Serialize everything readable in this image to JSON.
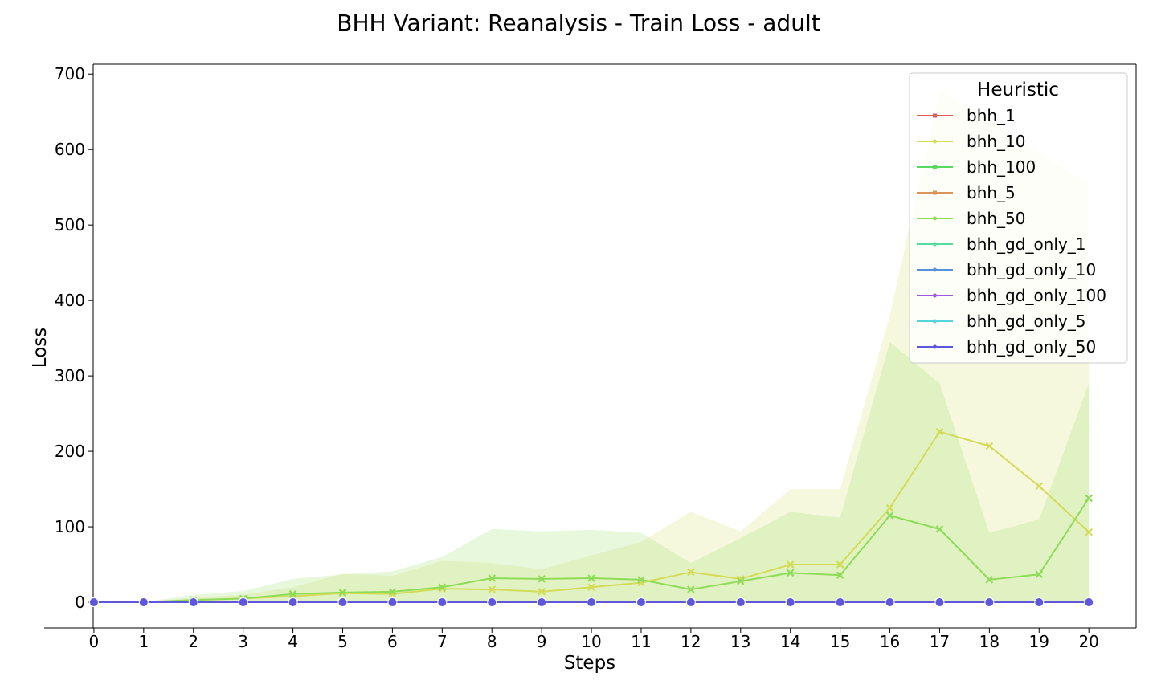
{
  "chart_data": {
    "type": "line",
    "title": "BHH Variant: Reanalysis - Train Loss - adult",
    "xlabel": "Steps",
    "ylabel": "Loss",
    "x": [
      0,
      1,
      2,
      3,
      4,
      5,
      6,
      7,
      8,
      9,
      10,
      11,
      12,
      13,
      14,
      15,
      16,
      17,
      18,
      19,
      20
    ],
    "xlim": [
      -1,
      20.95
    ],
    "ylim": [
      -34,
      713
    ],
    "x_ticks": [
      "0",
      "1",
      "2",
      "3",
      "4",
      "5",
      "6",
      "7",
      "8",
      "9",
      "10",
      "11",
      "12",
      "13",
      "14",
      "15",
      "16",
      "17",
      "18",
      "19",
      "20"
    ],
    "y_ticks": [
      0,
      100,
      200,
      300,
      400,
      500,
      600,
      700
    ],
    "y_tick_labels": [
      "0",
      "100",
      "200",
      "300",
      "400",
      "500",
      "600",
      "700"
    ],
    "grid": false,
    "legend": {
      "title": "Heuristic",
      "placement": "top-right"
    },
    "series": [
      {
        "name": "bhh_1",
        "color": "#db5f57",
        "marker": "square",
        "values": [
          0,
          0,
          0,
          0,
          0,
          0,
          0,
          0,
          0,
          0,
          0,
          0,
          0,
          0,
          0,
          0,
          0,
          0,
          0,
          0,
          0
        ]
      },
      {
        "name": "bhh_10",
        "color": "#d3db57",
        "marker": "x",
        "values": [
          0,
          0,
          3,
          5,
          8,
          12,
          11,
          18,
          17,
          14,
          20,
          26,
          40,
          31,
          50,
          50,
          125,
          226,
          207,
          154,
          93
        ],
        "band_lower": [
          0,
          0,
          0,
          0,
          0,
          0,
          0,
          0,
          0,
          0,
          0,
          0,
          0,
          0,
          0,
          0,
          0,
          0,
          0,
          0,
          0
        ],
        "band_upper": [
          0,
          0,
          6,
          10,
          20,
          38,
          35,
          55,
          52,
          44,
          62,
          80,
          120,
          94,
          150,
          150,
          380,
          680,
          640,
          595,
          555
        ]
      },
      {
        "name": "bhh_100",
        "color": "#57db5f",
        "marker": "square",
        "values": [
          0,
          0,
          0,
          0,
          0,
          0,
          0,
          0,
          0,
          0,
          0,
          0,
          0,
          0,
          0,
          0,
          0,
          0,
          0,
          0,
          0
        ]
      },
      {
        "name": "bhh_5",
        "color": "#db9457",
        "marker": "square",
        "values": [
          0,
          0,
          0,
          0,
          0,
          0,
          0,
          0,
          0,
          0,
          0,
          0,
          0,
          0,
          0,
          0,
          0,
          0,
          0,
          0,
          0
        ]
      },
      {
        "name": "bhh_50",
        "color": "#8edb57",
        "marker": "x",
        "values": [
          0,
          0,
          3,
          5,
          11,
          13,
          14,
          20,
          32,
          31,
          32,
          30,
          17,
          28,
          39,
          36,
          115,
          97,
          30,
          37,
          138
        ],
        "band_lower": [
          0,
          0,
          0,
          0,
          0,
          0,
          0,
          0,
          0,
          0,
          0,
          0,
          0,
          0,
          0,
          0,
          0,
          0,
          0,
          0,
          0
        ],
        "band_upper": [
          0,
          0,
          10,
          15,
          31,
          37,
          41,
          60,
          97,
          94,
          96,
          92,
          52,
          85,
          120,
          112,
          345,
          290,
          92,
          110,
          290
        ]
      },
      {
        "name": "bhh_gd_only_1",
        "color": "#57dba2",
        "marker": "circle",
        "values": [
          0,
          0,
          0,
          0,
          0,
          0,
          0,
          0,
          0,
          0,
          0,
          0,
          0,
          0,
          0,
          0,
          0,
          0,
          0,
          0,
          0
        ]
      },
      {
        "name": "bhh_gd_only_10",
        "color": "#5790db",
        "marker": "circle",
        "values": [
          0,
          0,
          0,
          0,
          0,
          0,
          0,
          0,
          0,
          0,
          0,
          0,
          0,
          0,
          0,
          0,
          0,
          0,
          0,
          0,
          0
        ]
      },
      {
        "name": "bhh_gd_only_100",
        "color": "#a157db",
        "marker": "circle",
        "values": [
          0,
          0,
          0,
          0,
          0,
          0,
          0,
          0,
          0,
          0,
          0,
          0,
          0,
          0,
          0,
          0,
          0,
          0,
          0,
          0,
          0
        ]
      },
      {
        "name": "bhh_gd_only_5",
        "color": "#57d3db",
        "marker": "circle",
        "values": [
          0,
          0,
          0,
          0,
          0,
          0,
          0,
          0,
          0,
          0,
          0,
          0,
          0,
          0,
          0,
          0,
          0,
          0,
          0,
          0,
          0
        ]
      },
      {
        "name": "bhh_gd_only_50",
        "color": "#5f57db",
        "marker": "circle",
        "values": [
          0,
          0,
          0,
          0,
          0,
          0,
          0,
          0,
          0,
          0,
          0,
          0,
          0,
          0,
          0,
          0,
          0,
          0,
          0,
          0,
          0
        ]
      }
    ]
  }
}
